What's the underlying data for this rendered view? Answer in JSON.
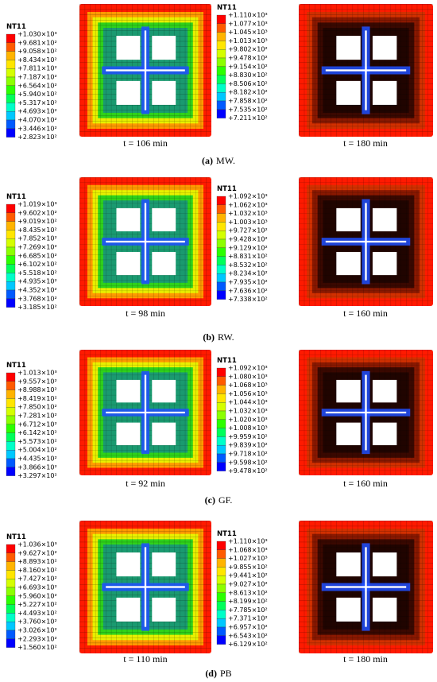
{
  "rows": [
    {
      "caption": {
        "label": "(a)",
        "text": "MW."
      },
      "plots": [
        {
          "legend_title": "NT11",
          "legend": [
            "+1.030×10³",
            "+9.681×10²",
            "+9.058×10²",
            "+8.434×10²",
            "+7.811×10²",
            "+7.187×10²",
            "+6.564×10²",
            "+5.940×10²",
            "+5.317×10²",
            "+4.693×10²",
            "+4.070×10²",
            "+3.446×10²",
            "+2.823×10²"
          ],
          "time": "t = 106 min"
        },
        {
          "legend_title": "NT11",
          "legend": [
            "+1.110×10³",
            "+1.077×10³",
            "+1.045×10³",
            "+1.013×10³",
            "+9.802×10²",
            "+9.478×10²",
            "+9.154×10²",
            "+8.830×10²",
            "+8.506×10²",
            "+8.182×10²",
            "+7.858×10²",
            "+7.535×10²",
            "+7.211×10²"
          ],
          "time": "t = 180 min"
        }
      ]
    },
    {
      "caption": {
        "label": "(b)",
        "text": "RW."
      },
      "plots": [
        {
          "legend_title": "NT11",
          "legend": [
            "+1.019×10³",
            "+9.602×10²",
            "+9.019×10²",
            "+8.435×10²",
            "+7.852×10²",
            "+7.269×10²",
            "+6.685×10²",
            "+6.102×10²",
            "+5.518×10²",
            "+4.935×10²",
            "+4.352×10²",
            "+3.768×10²",
            "+3.185×10²"
          ],
          "time": "t = 98 min"
        },
        {
          "legend_title": "NT11",
          "legend": [
            "+1.092×10³",
            "+1.062×10³",
            "+1.032×10³",
            "+1.003×10³",
            "+9.727×10²",
            "+9.428×10²",
            "+9.129×10²",
            "+8.831×10²",
            "+8.532×10²",
            "+8.234×10²",
            "+7.935×10²",
            "+7.636×10²",
            "+7.338×10²"
          ],
          "time": "t = 160 min"
        }
      ]
    },
    {
      "caption": {
        "label": "(c)",
        "text": "GF."
      },
      "plots": [
        {
          "legend_title": "NT11",
          "legend": [
            "+1.013×10³",
            "+9.557×10²",
            "+8.988×10²",
            "+8.419×10²",
            "+7.850×10²",
            "+7.281×10²",
            "+6.712×10²",
            "+6.142×10²",
            "+5.573×10²",
            "+5.004×10²",
            "+4.435×10²",
            "+3.866×10²",
            "+3.297×10²"
          ],
          "time": "t = 92 min"
        },
        {
          "legend_title": "NT11",
          "legend": [
            "+1.092×10³",
            "+1.080×10³",
            "+1.068×10³",
            "+1.056×10³",
            "+1.044×10³",
            "+1.032×10³",
            "+1.020×10³",
            "+1.008×10³",
            "+9.959×10²",
            "+9.839×10²",
            "+9.718×10²",
            "+9.598×10²",
            "+9.478×10²"
          ],
          "time": "t = 160 min"
        }
      ]
    },
    {
      "caption": {
        "label": "(d)",
        "text": "PB"
      },
      "plots": [
        {
          "legend_title": "NT11",
          "legend": [
            "+1.036×10³",
            "+9.627×10²",
            "+8.893×10²",
            "+8.160×10²",
            "+7.427×10²",
            "+6.693×10²",
            "+5.960×10²",
            "+5.227×10²",
            "+4.493×10²",
            "+3.760×10²",
            "+3.026×10²",
            "+2.293×10²",
            "+1.560×10²"
          ],
          "time": "t = 110 min"
        },
        {
          "legend_title": "NT11",
          "legend": [
            "+1.110×10³",
            "+1.068×10³",
            "+1.027×10³",
            "+9.855×10²",
            "+9.441×10²",
            "+9.027×10²",
            "+8.613×10²",
            "+8.199×10²",
            "+7.785×10²",
            "+7.371×10²",
            "+6.957×10²",
            "+6.543×10²",
            "+6.129×10²"
          ],
          "time": "t = 180 min"
        }
      ]
    }
  ]
}
